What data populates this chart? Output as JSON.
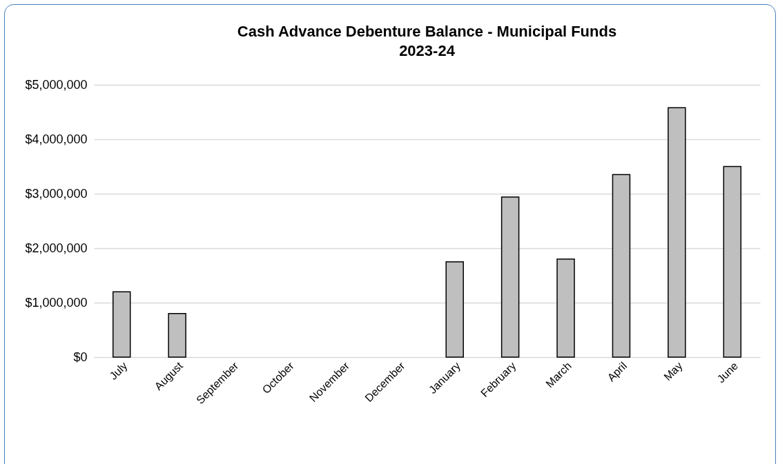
{
  "chart_data": {
    "type": "bar",
    "title": "Cash Advance Debenture Balance - Municipal Funds",
    "subtitle": "2023-24",
    "categories": [
      "July",
      "August",
      "September",
      "October",
      "November",
      "December",
      "January",
      "February",
      "March",
      "April",
      "May",
      "June"
    ],
    "values": [
      1200000,
      800000,
      null,
      null,
      null,
      null,
      1750000,
      2940000,
      1800000,
      3350000,
      4580000,
      3500000
    ],
    "color": "#bfbfbf",
    "ylim": [
      0,
      5000000
    ],
    "yticks": [
      {
        "value": 0,
        "label": "$0"
      },
      {
        "value": 1000000,
        "label": "$1,000,000"
      },
      {
        "value": 2000000,
        "label": "$2,000,000"
      },
      {
        "value": 3000000,
        "label": "$3,000,000"
      },
      {
        "value": 4000000,
        "label": "$4,000,000"
      },
      {
        "value": 5000000,
        "label": "$5,000,000"
      }
    ],
    "grid": "y"
  }
}
